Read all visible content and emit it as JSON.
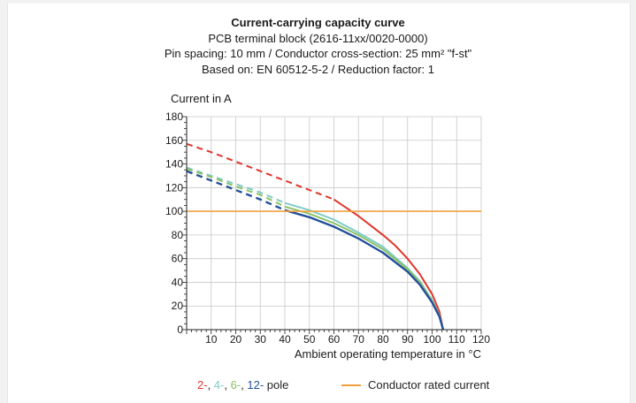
{
  "colors": {
    "pole_2": "#e0362c",
    "pole_4": "#7fcbc8",
    "pole_6": "#8cc264",
    "pole_12": "#23509a",
    "rated_current": "#f0a040",
    "grid": "#c8c8c8"
  },
  "chart_data": {
    "type": "line",
    "title": "Current-carrying capacity curve",
    "subtitles": [
      "PCB terminal block (2616-11xx/0020-0000)",
      "Pin spacing: 10 mm / Conductor cross-section: 25 mm² \"f-st\"",
      "Based on: EN 60512-5-2 / Reduction factor: 1"
    ],
    "ylabel": "Current in A",
    "xlabel": "Ambient operating temperature in °C",
    "xlim": [
      0,
      120
    ],
    "ylim": [
      0,
      180
    ],
    "xticks": [
      10,
      20,
      30,
      40,
      50,
      60,
      70,
      80,
      90,
      100,
      110,
      120
    ],
    "yticks": [
      0,
      20,
      40,
      60,
      80,
      100,
      120,
      140,
      160,
      180
    ],
    "grid": true,
    "series": [
      {
        "name": "2-",
        "color_key": "pole_2",
        "dashed": {
          "x": [
            0,
            10,
            20,
            30,
            40,
            50,
            60
          ],
          "y": [
            157,
            150,
            142,
            134,
            126,
            118,
            110
          ]
        },
        "solid": {
          "x": [
            60,
            65,
            70,
            75,
            80,
            85,
            90,
            95,
            100,
            103,
            104.5
          ],
          "y": [
            110,
            103,
            96,
            88,
            80,
            71,
            60,
            47,
            30,
            15,
            0
          ]
        }
      },
      {
        "name": "4-",
        "color_key": "pole_4",
        "dashed": {
          "x": [
            0,
            10,
            20,
            30,
            40
          ],
          "y": [
            137,
            130,
            123,
            116,
            107
          ]
        },
        "solid": {
          "x": [
            40,
            50,
            60,
            70,
            80,
            90,
            95,
            100,
            103,
            104.5
          ],
          "y": [
            107,
            101,
            93,
            82,
            70,
            52,
            41,
            25,
            12,
            0
          ]
        }
      },
      {
        "name": "6-",
        "color_key": "pole_6",
        "dashed": {
          "x": [
            0,
            10,
            20,
            30,
            40
          ],
          "y": [
            136,
            129,
            121,
            114,
            104
          ]
        },
        "solid": {
          "x": [
            40,
            50,
            60,
            70,
            80,
            90,
            95,
            100,
            103,
            104.5
          ],
          "y": [
            104,
            98,
            90,
            80,
            68,
            51,
            40,
            24,
            12,
            0
          ]
        }
      },
      {
        "name": "12-",
        "color_key": "pole_12",
        "dashed": {
          "x": [
            0,
            10,
            20,
            30,
            40
          ],
          "y": [
            134,
            126,
            118,
            110,
            101
          ]
        },
        "solid": {
          "x": [
            40,
            50,
            60,
            70,
            80,
            90,
            95,
            100,
            103,
            104.5
          ],
          "y": [
            101,
            95,
            87,
            77,
            65,
            49,
            38,
            23,
            11,
            0
          ]
        }
      },
      {
        "name": "Conductor rated current",
        "color_key": "rated_current",
        "solid": {
          "x": [
            0,
            120
          ],
          "y": [
            100,
            100
          ]
        }
      }
    ],
    "legend": {
      "placement": "bottom",
      "pole_labels": [
        {
          "text": "2-",
          "color_key": "pole_2"
        },
        {
          "text": ", ",
          "color_key": null
        },
        {
          "text": "4-",
          "color_key": "pole_4"
        },
        {
          "text": ", ",
          "color_key": null
        },
        {
          "text": "6-",
          "color_key": "pole_6"
        },
        {
          "text": ", ",
          "color_key": null
        },
        {
          "text": "12-",
          "color_key": "pole_12"
        },
        {
          "text": " pole",
          "color_key": null
        }
      ],
      "rated_label": "Conductor rated current"
    }
  }
}
